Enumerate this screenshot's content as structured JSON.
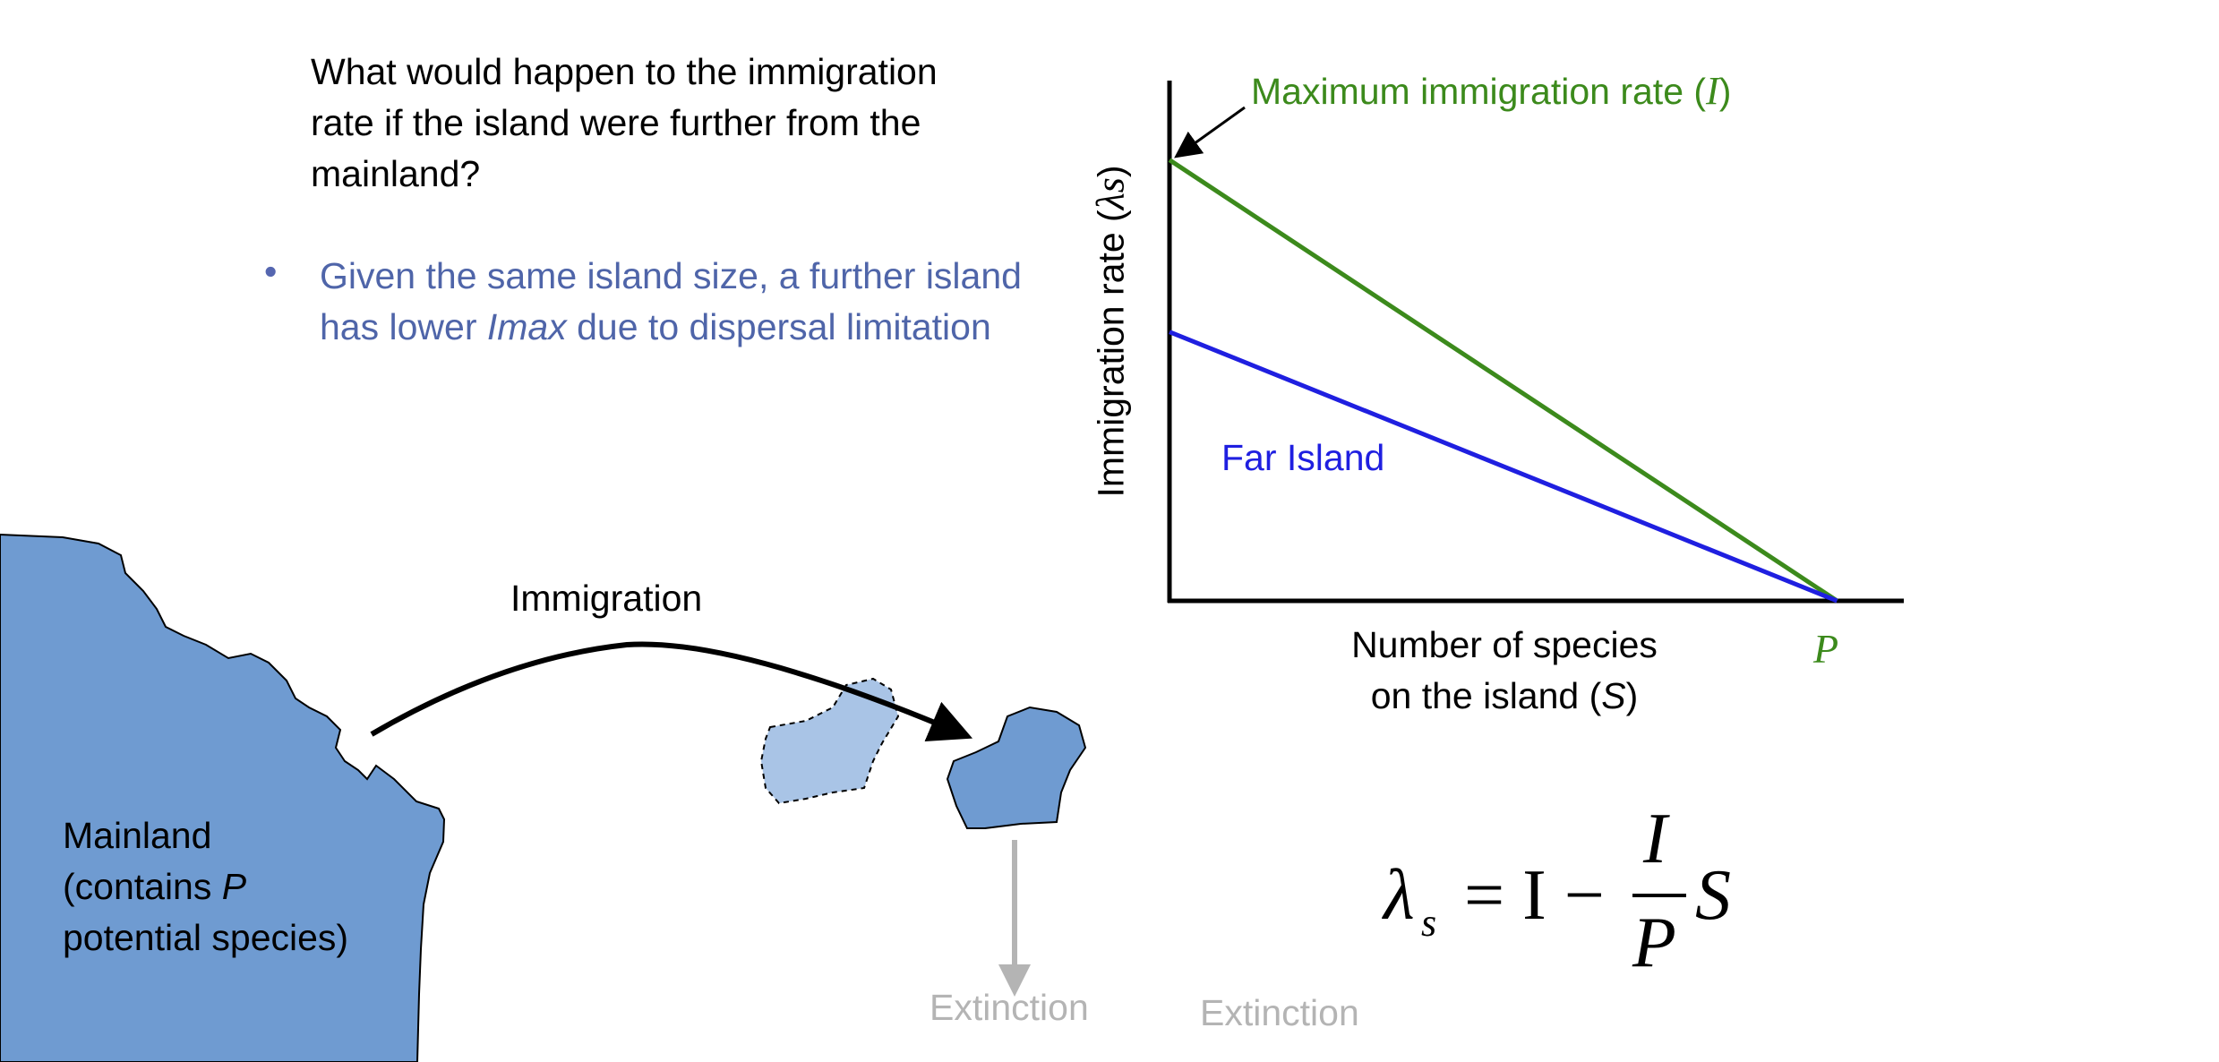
{
  "question": {
    "line1": "What would happen to the immigration",
    "line2": "rate if the island were further from the",
    "line3": "mainland?"
  },
  "answer": {
    "bullet": "•",
    "part1": "Given the same island size, a further island has lower ",
    "emph": "Imax",
    "part2": " due to dispersal limitation"
  },
  "diagram": {
    "immigration_label": "Immigration",
    "mainland_line1": "Mainland",
    "mainland_line2a": "(contains ",
    "mainland_line2b": "P",
    "mainland_line3": "potential species)",
    "extinction_label_1": "Extinction",
    "extinction_label_2": "Extinction",
    "colors": {
      "mainland": "#6f9bd1",
      "island": "#6f9bd1",
      "ghost_island": "#a9c4e6",
      "extinction_arrow": "#b4b4b4"
    }
  },
  "chart_data": {
    "type": "line",
    "xlabel_line1": "Number of species",
    "xlabel_line2a": "on the island (",
    "xlabel_line2b": "S",
    "xlabel_line2c": ")",
    "ylabel_prefix": "Immigration rate (",
    "ylabel_symbol": "λs",
    "ylabel_suffix": ")",
    "x_tick_label": "P",
    "max_annotation_prefix": "Maximum immigration rate (",
    "max_annotation_symbol": "I",
    "max_annotation_suffix": ")",
    "far_island_label": "Far Island",
    "series": [
      {
        "name": "Maximum immigration rate (I)",
        "color": "#3c8a1c",
        "x": [
          0,
          1
        ],
        "y": [
          1,
          0
        ]
      },
      {
        "name": "Far Island",
        "color": "#1f1fe0",
        "x": [
          0,
          1
        ],
        "y": [
          0.61,
          0
        ]
      }
    ],
    "xlim": [
      0,
      1.1
    ],
    "ylim": [
      0,
      1.18
    ]
  },
  "equation": {
    "lambda": "λ",
    "sub": "s",
    "equals_I_minus": "= I −",
    "num": "I",
    "den": "P",
    "S": "S"
  }
}
